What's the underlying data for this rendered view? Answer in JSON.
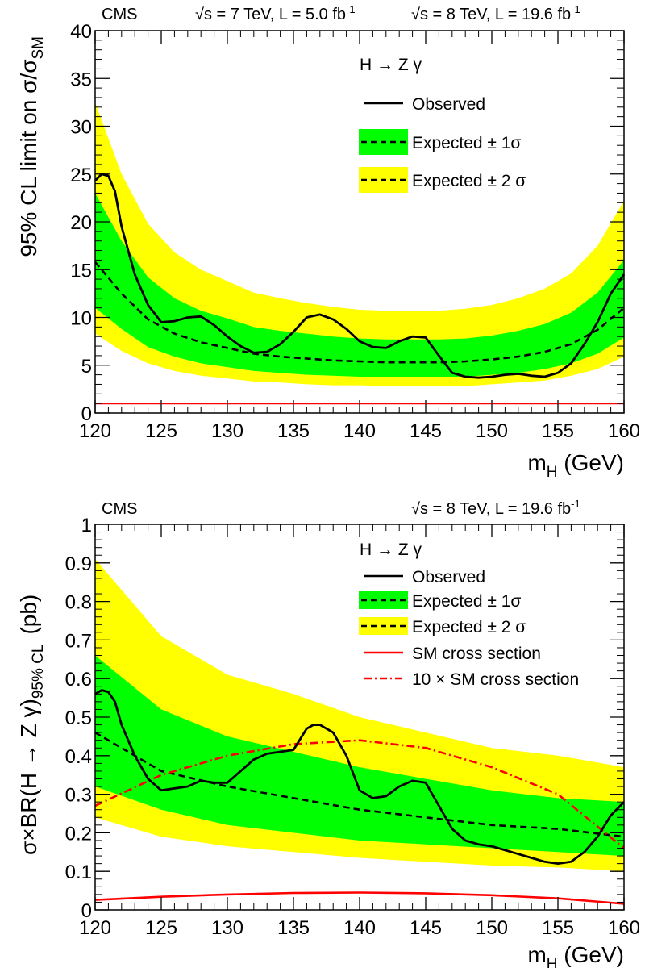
{
  "chart_data": [
    {
      "type": "line",
      "header": {
        "left": "CMS",
        "mid": "√s = 7 TeV, L = 5.0 fb",
        "mid_sup": "-1",
        "right": "√s = 8 TeV, L = 19.6 fb",
        "right_sup": "-1"
      },
      "xlabel": "m",
      "xlabel_sub": "H",
      "xlabel_unit": " (GeV)",
      "ylabel": "95% CL limit on σ/σ",
      "ylabel_sub": "SM",
      "xlim": [
        120,
        160
      ],
      "ylim": [
        0,
        40
      ],
      "xticks": [
        "120",
        "125",
        "130",
        "135",
        "140",
        "145",
        "150",
        "155",
        "160"
      ],
      "yticks": [
        "0",
        "5",
        "10",
        "15",
        "20",
        "25",
        "30",
        "35",
        "40"
      ],
      "legend": {
        "title": "H → Z γ",
        "observed": "Observed",
        "exp1": "Expected ± 1σ",
        "exp2": "Expected ± 2 σ"
      },
      "x": [
        120,
        122,
        124,
        126,
        128,
        130,
        132,
        134,
        136,
        138,
        140,
        142,
        144,
        146,
        148,
        150,
        152,
        154,
        156,
        158,
        160
      ],
      "expected": [
        15.8,
        12.5,
        9.8,
        8.3,
        7.4,
        6.8,
        6.2,
        5.9,
        5.7,
        5.5,
        5.4,
        5.3,
        5.3,
        5.3,
        5.4,
        5.6,
        5.9,
        6.4,
        7.2,
        8.7,
        11.0
      ],
      "band1_lo": [
        11.0,
        8.8,
        6.9,
        5.9,
        5.2,
        4.8,
        4.4,
        4.2,
        4.0,
        3.9,
        3.8,
        3.8,
        3.8,
        3.8,
        3.8,
        4.0,
        4.2,
        4.6,
        5.2,
        6.2,
        7.9
      ],
      "band1_hi": [
        23.0,
        18.0,
        14.2,
        12.0,
        10.7,
        9.9,
        9.0,
        8.6,
        8.3,
        8.0,
        7.8,
        7.7,
        7.7,
        7.7,
        7.8,
        8.1,
        8.6,
        9.3,
        10.5,
        12.6,
        16.0
      ],
      "band2_lo": [
        8.3,
        6.5,
        5.2,
        4.4,
        3.9,
        3.6,
        3.3,
        3.2,
        3.0,
        2.9,
        2.9,
        2.8,
        2.8,
        2.8,
        2.8,
        3.0,
        3.2,
        3.4,
        3.9,
        4.6,
        5.9
      ],
      "band2_hi": [
        32.5,
        25.0,
        19.8,
        16.8,
        15.0,
        13.8,
        12.6,
        12.0,
        11.5,
        11.1,
        10.8,
        10.7,
        10.7,
        10.7,
        10.9,
        11.3,
        12.0,
        13.0,
        14.6,
        17.5,
        22.2
      ],
      "observed_x": [
        120,
        120.5,
        121,
        121.5,
        122,
        123,
        124,
        125,
        126,
        127,
        128,
        129,
        130,
        131,
        132,
        133,
        134,
        135,
        136,
        137,
        138,
        139,
        140,
        141,
        142,
        143,
        144,
        145,
        146,
        147,
        148,
        149,
        150,
        151,
        152,
        153,
        154,
        155,
        156,
        157,
        158,
        159,
        160
      ],
      "observed": [
        24.3,
        25.0,
        24.8,
        23.2,
        19.5,
        14.5,
        11.3,
        9.5,
        9.6,
        10.0,
        10.1,
        9.2,
        8.0,
        7.0,
        6.3,
        6.4,
        7.2,
        8.5,
        10.0,
        10.3,
        9.8,
        8.8,
        7.5,
        6.9,
        6.8,
        7.5,
        8.0,
        7.9,
        6.0,
        4.2,
        3.8,
        3.7,
        3.8,
        4.0,
        4.1,
        3.9,
        3.8,
        4.2,
        5.2,
        7.2,
        9.5,
        12.5,
        14.5
      ],
      "sm_line": 1.0,
      "colors": {
        "band1": "#00ff00",
        "band2": "#ffff00",
        "observed": "#000000",
        "expected": "#000000",
        "sm": "#ff0000"
      }
    },
    {
      "type": "line",
      "header": {
        "left": "CMS",
        "right": "√s = 8 TeV, L = 19.6 fb",
        "right_sup": "-1"
      },
      "xlabel": "m",
      "xlabel_sub": "H",
      "xlabel_unit": " (GeV)",
      "ylabel": "σ×BR(H → Z γ)",
      "ylabel_sub": "95% CL",
      "ylabel_unit": "(pb)",
      "xlim": [
        120,
        160
      ],
      "ylim": [
        0,
        1
      ],
      "xticks": [
        "120",
        "125",
        "130",
        "135",
        "140",
        "145",
        "150",
        "155",
        "160"
      ],
      "yticks": [
        "0",
        "0.1",
        "0.2",
        "0.3",
        "0.4",
        "0.5",
        "0.6",
        "0.7",
        "0.8",
        "0.9",
        "1"
      ],
      "legend": {
        "title": "H → Z γ",
        "observed": "Observed",
        "exp1": "Expected ± 1σ",
        "exp2": "Expected ± 2 σ",
        "sm": "SM cross section",
        "sm10": "10 × SM cross section"
      },
      "x": [
        120,
        125,
        130,
        135,
        140,
        145,
        150,
        155,
        160
      ],
      "expected": [
        0.46,
        0.36,
        0.32,
        0.29,
        0.26,
        0.24,
        0.22,
        0.21,
        0.19
      ],
      "band1_lo": [
        0.32,
        0.26,
        0.22,
        0.2,
        0.18,
        0.17,
        0.16,
        0.15,
        0.14
      ],
      "band1_hi": [
        0.66,
        0.52,
        0.45,
        0.41,
        0.37,
        0.34,
        0.31,
        0.29,
        0.28
      ],
      "band2_lo": [
        0.24,
        0.19,
        0.165,
        0.15,
        0.135,
        0.125,
        0.115,
        0.11,
        0.1
      ],
      "band2_hi": [
        0.91,
        0.71,
        0.61,
        0.56,
        0.5,
        0.46,
        0.42,
        0.4,
        0.37
      ],
      "observed_x": [
        120,
        120.5,
        121,
        121.5,
        122,
        123,
        124,
        125,
        126,
        127,
        128,
        129,
        130,
        131,
        132,
        133,
        134,
        135,
        136,
        136.5,
        137,
        138,
        139,
        140,
        141,
        142,
        143,
        144,
        145,
        146,
        147,
        148,
        149,
        150,
        151,
        152,
        153,
        154,
        155,
        156,
        157,
        158,
        159,
        160
      ],
      "observed": [
        0.56,
        0.57,
        0.565,
        0.54,
        0.48,
        0.4,
        0.34,
        0.31,
        0.315,
        0.32,
        0.335,
        0.33,
        0.33,
        0.36,
        0.39,
        0.405,
        0.41,
        0.415,
        0.47,
        0.48,
        0.48,
        0.46,
        0.4,
        0.31,
        0.29,
        0.295,
        0.32,
        0.335,
        0.33,
        0.27,
        0.21,
        0.18,
        0.17,
        0.165,
        0.155,
        0.145,
        0.135,
        0.125,
        0.12,
        0.125,
        0.15,
        0.19,
        0.245,
        0.28
      ],
      "sm_x": [
        120,
        125,
        130,
        135,
        140,
        145,
        150,
        155,
        160
      ],
      "sm": [
        0.026,
        0.034,
        0.04,
        0.044,
        0.045,
        0.043,
        0.038,
        0.03,
        0.016
      ],
      "sm10": [
        0.27,
        0.35,
        0.4,
        0.43,
        0.44,
        0.42,
        0.37,
        0.3,
        0.16
      ],
      "colors": {
        "band1": "#00ff00",
        "band2": "#ffff00",
        "observed": "#000000",
        "expected": "#000000",
        "sm": "#ff0000",
        "sm10": "#ff0000"
      }
    }
  ]
}
